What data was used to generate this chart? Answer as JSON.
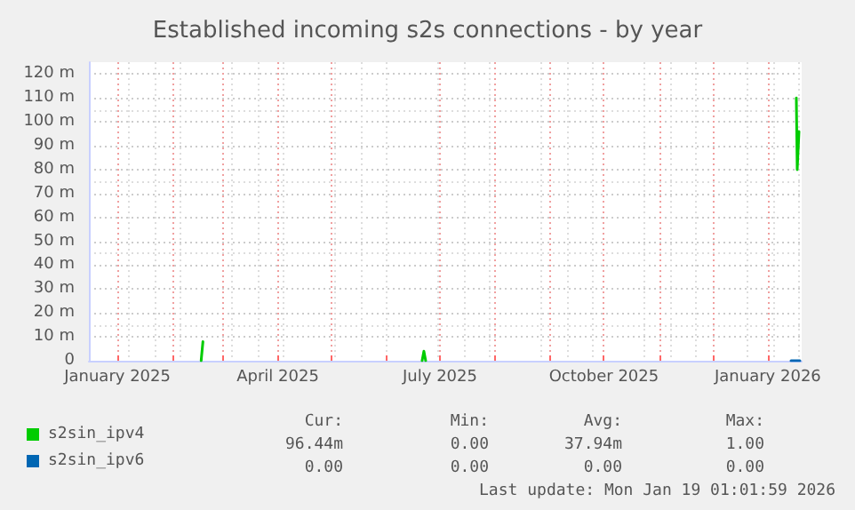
{
  "chart_data": {
    "type": "line",
    "title": "Established incoming s2s connections - by year",
    "xlim": [
      "2024-12-16",
      "2026-01-20"
    ],
    "xticks": [
      {
        "value": "2025-01-01",
        "label": "January 2025"
      },
      {
        "value": "2025-02-01",
        "label": null
      },
      {
        "value": "2025-03-01",
        "label": null
      },
      {
        "value": "2025-04-01",
        "label": "April 2025"
      },
      {
        "value": "2025-05-01",
        "label": null
      },
      {
        "value": "2025-06-01",
        "label": null
      },
      {
        "value": "2025-07-01",
        "label": "July 2025"
      },
      {
        "value": "2025-08-01",
        "label": null
      },
      {
        "value": "2025-09-01",
        "label": null
      },
      {
        "value": "2025-10-01",
        "label": "October 2025"
      },
      {
        "value": "2025-11-01",
        "label": null
      },
      {
        "value": "2025-12-01",
        "label": null
      },
      {
        "value": "2026-01-01",
        "label": "January 2026"
      }
    ],
    "ylim": [
      0,
      125
    ],
    "yticks": [
      0,
      {
        "value": 10,
        "label": "10 m"
      },
      {
        "value": 20,
        "label": "20 m"
      },
      {
        "value": 30,
        "label": "30 m"
      },
      {
        "value": 40,
        "label": "40 m"
      },
      {
        "value": 50,
        "label": "50 m"
      },
      {
        "value": 60,
        "label": "60 m"
      },
      {
        "value": 70,
        "label": "70 m"
      },
      {
        "value": 80,
        "label": "80 m"
      },
      {
        "value": 90,
        "label": "90 m"
      },
      {
        "value": 100,
        "label": "100 m"
      },
      {
        "value": 110,
        "label": "110 m"
      },
      {
        "value": 120,
        "label": "120 m"
      }
    ],
    "grid": true,
    "legend": "bottom left",
    "marker": "none",
    "line_style": "solid",
    "series": [
      {
        "name": "s2sin_ipv4",
        "color": "#00cc00",
        "x": [
          "2025-02-17",
          "2025-02-18",
          "2025-04-01",
          "2025-06-21",
          "2025-06-22",
          "2025-06-23",
          "2025-10-01",
          "2026-01-17",
          "2026-01-17T12:00",
          "2026-01-18T12:00"
        ],
        "values": [
          0,
          8,
          null,
          0,
          4,
          0,
          null,
          110,
          80,
          96
        ]
      },
      {
        "name": "s2sin_ipv6",
        "color": "#0066b3",
        "x": [
          "2026-01-14",
          "2026-01-19"
        ],
        "values": [
          0,
          0
        ]
      }
    ],
    "annotations": [
      "Cur:",
      "Min:",
      "Avg:",
      "Max:",
      "96.44m",
      "0.00",
      "37.94m",
      "1.00",
      "0.00",
      "0.00",
      "0.00",
      "0.00",
      "Last update: Mon Jan 19 01:01:59 2026"
    ]
  }
}
